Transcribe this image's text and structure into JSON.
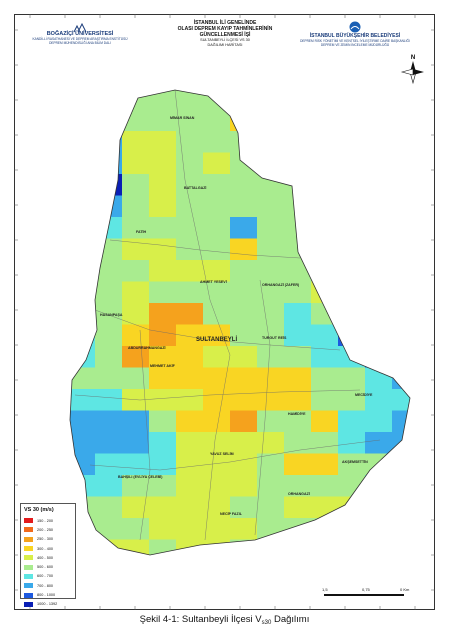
{
  "header": {
    "left": {
      "name": "BOĞAZİÇİ ÜNİVERSİTESİ",
      "line2": "KANDİLLİ RASATHANESİ VE DEPREM ARAŞTIRMA ENSTİTÜSÜ",
      "line3": "DEPREM MÜHENDİSLİĞİ ANA BİLİM DALI"
    },
    "center": {
      "line1": "İSTANBUL İLİ GENELİNDE",
      "line2": "OLASI DEPREM KAYIP TAHMİNLERİNİN",
      "line3": "GÜNCELLENMESİ İŞİ",
      "line4": "SULTANBEYLİ İLÇESİ VS 30",
      "line5": "DAĞILIMI HARİTASI"
    },
    "right": {
      "name": "İSTANBUL BÜYÜKŞEHİR BELEDİYESİ",
      "line2": "DEPREM RİSK YÖNETİMİ VE KENTSEL İYİLEŞTİRME DAİRE BAŞKANLIĞI",
      "line3": "DEPREM VE ZEMİN İNCELEME MÜDÜRLÜĞÜ"
    }
  },
  "north_arrow": {
    "label": "N"
  },
  "map": {
    "district": "SULTANBEYLİ",
    "labels": [
      "MİMAR SİNAN",
      "BATTALGAZİ",
      "FATİH",
      "AHMET YESEVİ",
      "HASANPAŞA",
      "ABDURRAHMANGAZİ",
      "MEHMET AKİF",
      "SULTANBEYLİ",
      "TURGUT REİS",
      "ORHANGAZİ (ZAFER)",
      "YAVUZ SELİM",
      "HAMİDİYE",
      "NECİP FAZIL",
      "MECİDİYE",
      "BAHŞILI (EVLİYA ÇELEBİ)",
      "ORHANGAZİ",
      "AKŞEMSETTİN"
    ]
  },
  "legend": {
    "title": "VS 30 (m/s)",
    "items": [
      {
        "label": "150 - 200",
        "color": "#e31a1c"
      },
      {
        "label": "200 - 250",
        "color": "#f26a1b"
      },
      {
        "label": "250 - 300",
        "color": "#f5a21d"
      },
      {
        "label": "300 - 400",
        "color": "#f9d523"
      },
      {
        "label": "400 - 500",
        "color": "#d8ef4a"
      },
      {
        "label": "500 - 600",
        "color": "#a9ec8f"
      },
      {
        "label": "600 - 700",
        "color": "#5ee6e3"
      },
      {
        "label": "700 - 800",
        "color": "#3aa9ea"
      },
      {
        "label": "800 - 1000",
        "color": "#1d5ae0"
      },
      {
        "label": "1000 - 1392",
        "color": "#0a1fb5"
      }
    ]
  },
  "scale_bar": {
    "labels": [
      "1,5",
      "0,75",
      "0 Km"
    ]
  },
  "caption": {
    "prefix": "Şekil 4-1: Sultanbeyli İlçesi V",
    "sub": "s30",
    "suffix": " Dağılımı"
  }
}
